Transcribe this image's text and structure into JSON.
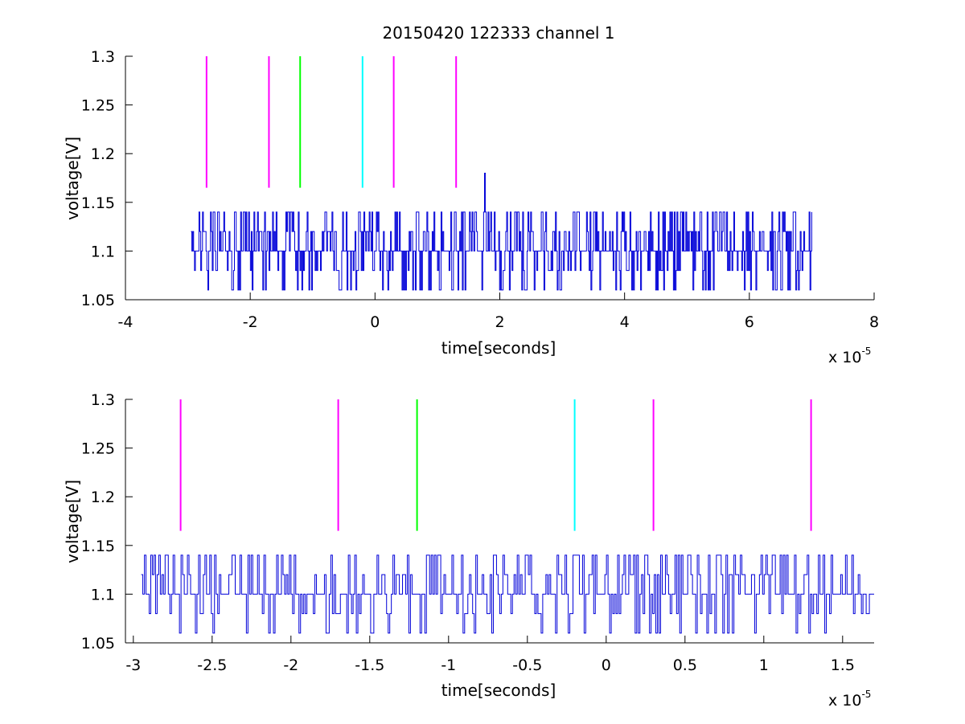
{
  "title": "20150420 122333 channel 1",
  "colors": {
    "trace": "#0000d8",
    "magenta": "#ff00ff",
    "green": "#00ff00",
    "cyan": "#00ffff",
    "axis": "#000000"
  },
  "chart_data": [
    {
      "type": "line",
      "title": "20150420 122333 channel 1",
      "xlabel": "time[seconds]",
      "ylabel": "voltage[V]",
      "x_multiplier": {
        "base": "x 10",
        "exponent": "-5"
      },
      "xlim": [
        -4e-05,
        8e-05
      ],
      "ylim": [
        1.05,
        1.3
      ],
      "x_ticks": [
        -4e-05,
        -2e-05,
        0,
        2e-05,
        4e-05,
        6e-05,
        8e-05
      ],
      "x_tick_labels": [
        "-4",
        "-2",
        "0",
        "2",
        "4",
        "6",
        "8"
      ],
      "y_ticks": [
        1.05,
        1.1,
        1.15,
        1.2,
        1.25,
        1.3
      ],
      "y_tick_labels": [
        "1.05",
        "1.1",
        "1.15",
        "1.2",
        "1.25",
        "1.3"
      ],
      "grid": false,
      "series": [
        {
          "color": "#0000d8",
          "x_range": [
            -2.95e-05,
            7e-05
          ],
          "levels": [
            1.06,
            1.08,
            1.1,
            1.12,
            1.14
          ],
          "base_level": 1.1,
          "spikes": [
            {
              "x": 1.75e-05,
              "y": 1.18
            }
          ],
          "description_points": 700
        }
      ],
      "markers": [
        {
          "x": -2.7e-05,
          "y0": 1.165,
          "y1": 1.3,
          "color": "#ff00ff"
        },
        {
          "x": -1.7e-05,
          "y0": 1.165,
          "y1": 1.3,
          "color": "#ff00ff"
        },
        {
          "x": -1.2e-05,
          "y0": 1.165,
          "y1": 1.3,
          "color": "#00ff00"
        },
        {
          "x": -2e-06,
          "y0": 1.165,
          "y1": 1.3,
          "color": "#00ffff"
        },
        {
          "x": 3e-06,
          "y0": 1.165,
          "y1": 1.3,
          "color": "#ff00ff"
        },
        {
          "x": 1.3e-05,
          "y0": 1.165,
          "y1": 1.3,
          "color": "#ff00ff"
        }
      ]
    },
    {
      "type": "line",
      "xlabel": "time[seconds]",
      "ylabel": "voltage[V]",
      "x_multiplier": {
        "base": "x 10",
        "exponent": "-5"
      },
      "xlim": [
        -3.05e-05,
        1.7e-05
      ],
      "ylim": [
        1.05,
        1.3
      ],
      "x_ticks": [
        -3e-05,
        -2.5e-05,
        -2e-05,
        -1.5e-05,
        -1e-05,
        -5e-06,
        0,
        5e-06,
        1e-05,
        1.5e-05
      ],
      "x_tick_labels": [
        "-3",
        "-2.5",
        "-2",
        "-1.5",
        "-1",
        "-0.5",
        "0",
        "0.5",
        "1",
        "1.5"
      ],
      "y_ticks": [
        1.05,
        1.1,
        1.15,
        1.2,
        1.25,
        1.3
      ],
      "y_tick_labels": [
        "1.05",
        "1.1",
        "1.15",
        "1.2",
        "1.25",
        "1.3"
      ],
      "grid": false,
      "series": [
        {
          "color": "#0000d8",
          "x_range": [
            -2.95e-05,
            1.7e-05
          ],
          "levels": [
            1.06,
            1.08,
            1.1,
            1.12,
            1.14
          ],
          "base_level": 1.1,
          "description_points": 460
        }
      ],
      "markers": [
        {
          "x": -2.7e-05,
          "y0": 1.165,
          "y1": 1.3,
          "color": "#ff00ff"
        },
        {
          "x": -1.7e-05,
          "y0": 1.165,
          "y1": 1.3,
          "color": "#ff00ff"
        },
        {
          "x": -1.2e-05,
          "y0": 1.165,
          "y1": 1.3,
          "color": "#00ff00"
        },
        {
          "x": -2e-06,
          "y0": 1.165,
          "y1": 1.3,
          "color": "#00ffff"
        },
        {
          "x": 3e-06,
          "y0": 1.165,
          "y1": 1.3,
          "color": "#ff00ff"
        },
        {
          "x": 1.3e-05,
          "y0": 1.165,
          "y1": 1.3,
          "color": "#ff00ff"
        }
      ]
    }
  ]
}
